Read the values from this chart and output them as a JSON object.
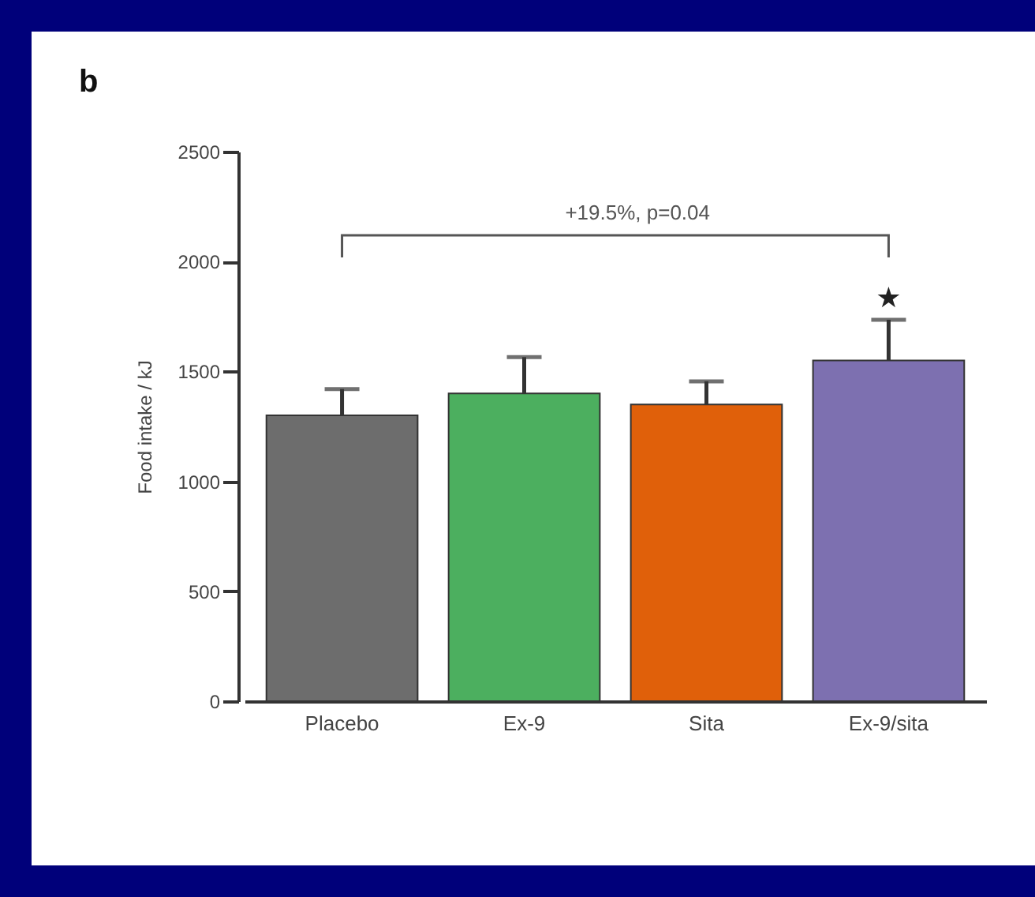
{
  "chart_data": {
    "type": "bar",
    "title": "b",
    "categories": [
      "Placebo",
      "Ex-9",
      "Sita",
      "Ex-9/sita"
    ],
    "values": [
      1300,
      1400,
      1350,
      1550
    ],
    "colors": [
      "#6d6d6d",
      "#4caf5f",
      "#e0600a",
      "#7d70b0"
    ],
    "errors": [
      [
        1300,
        1420
      ],
      [
        1400,
        1565
      ],
      [
        1350,
        1455
      ],
      [
        1550,
        1735
      ]
    ],
    "ylabel": "Food intake / kJ",
    "ylim": [
      0,
      2500
    ],
    "yticks": [
      0,
      500,
      1000,
      1500,
      2000,
      2500
    ],
    "annotations": [
      "+19.5%, p=0.04",
      {
        "text": "★",
        "x": "Ex-9/sita",
        "y": 1735
      }
    ]
  }
}
